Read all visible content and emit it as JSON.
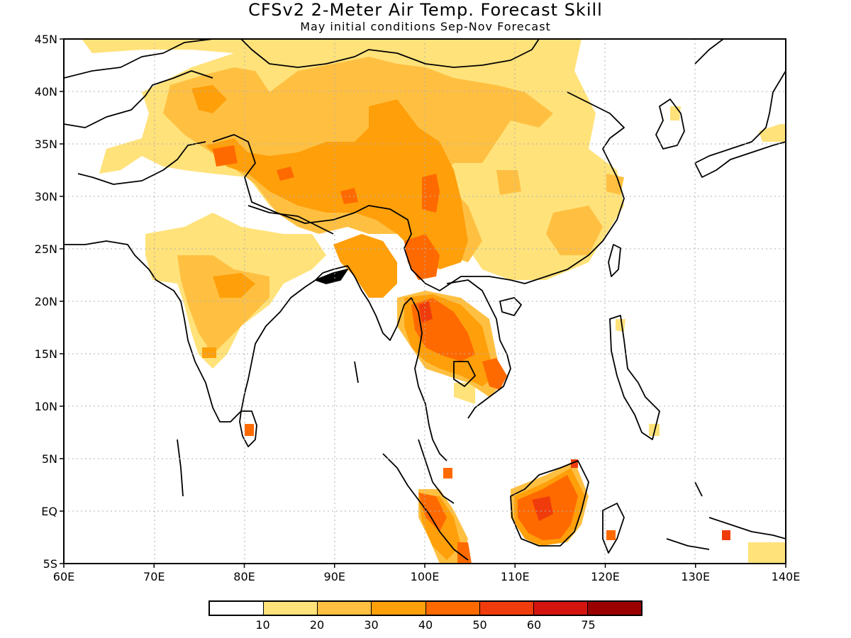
{
  "title": "CFSv2 2-Meter Air Temp. Forecast Skill",
  "subtitle": "May initial conditions  Sep-Nov Forecast",
  "map": {
    "type": "skill map",
    "region": {
      "lon_range": [
        60,
        140
      ],
      "lat_range": [
        -5,
        45
      ]
    },
    "x_ticks": [
      "60E",
      "70E",
      "80E",
      "90E",
      "100E",
      "110E",
      "120E",
      "130E",
      "140E"
    ],
    "y_ticks": [
      "45N",
      "40N",
      "35N",
      "30N",
      "25N",
      "20N",
      "15N",
      "10N",
      "5N",
      "EQ",
      "5S"
    ],
    "grid": true
  },
  "legend": {
    "labels": [
      "10",
      "20",
      "30",
      "40",
      "50",
      "60",
      "75"
    ],
    "colors": [
      "#ffffff",
      "#ffe27a",
      "#ffc042",
      "#ff9f0a",
      "#ff6a00",
      "#f03c0c",
      "#d4140f",
      "#9b0000"
    ]
  },
  "chart_data": {
    "type": "heatmap",
    "title": "CFSv2 2-Meter Air Temp. Forecast Skill",
    "subtitle": "May initial conditions  Sep-Nov Forecast",
    "xlim": [
      60,
      140
    ],
    "ylim": [
      -5,
      45
    ],
    "levels": [
      10,
      20,
      30,
      40,
      50,
      60,
      75
    ]
  }
}
